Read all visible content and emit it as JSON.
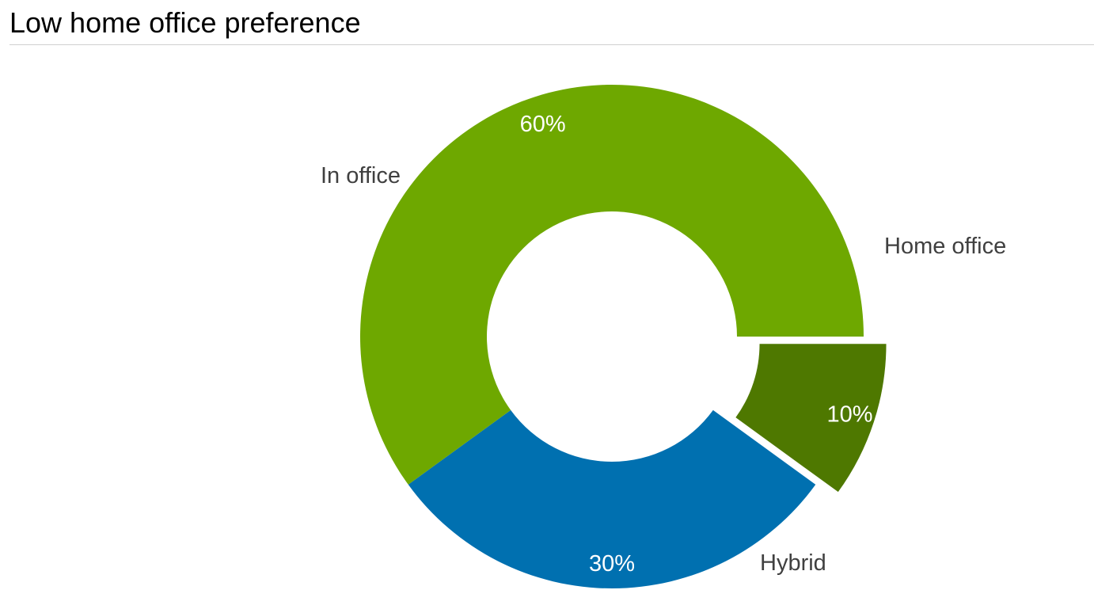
{
  "page": {
    "title": "Low home office preference"
  },
  "chart_data": {
    "type": "pie",
    "variant": "donut",
    "title": "Low home office preference",
    "slices": [
      {
        "label": "Home office",
        "value": 10,
        "value_label": "10%",
        "color": "#4e7800",
        "exploded": true
      },
      {
        "label": "Hybrid",
        "value": 30,
        "value_label": "30%",
        "color": "#0070b0"
      },
      {
        "label": "In office",
        "value": 60,
        "value_label": "60%",
        "color": "#6ea800"
      }
    ],
    "legend": "none",
    "labels": "outside-category-inside-percent"
  }
}
